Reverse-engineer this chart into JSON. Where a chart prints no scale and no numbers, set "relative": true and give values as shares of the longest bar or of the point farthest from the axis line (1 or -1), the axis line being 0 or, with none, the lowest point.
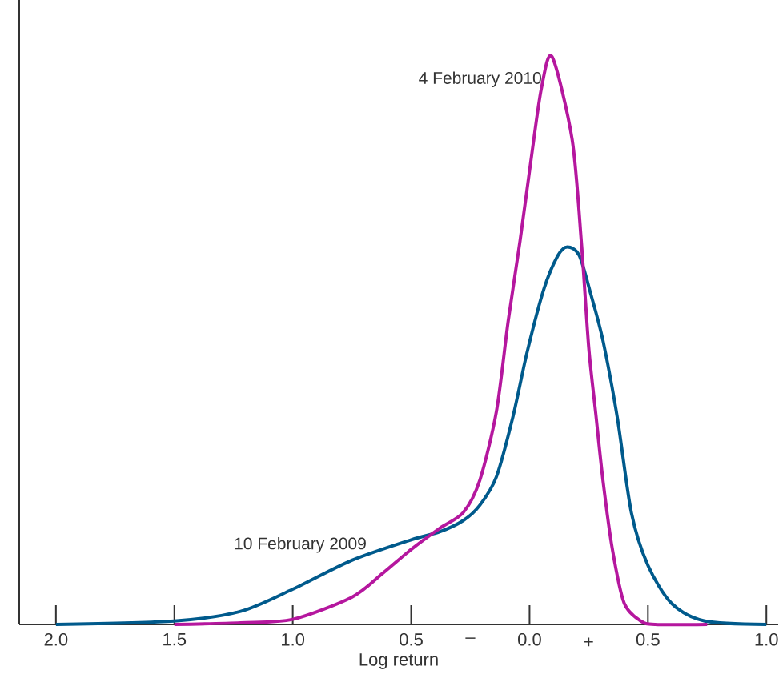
{
  "chart_data": {
    "type": "line",
    "relative": true,
    "xlabel": "Log return",
    "xlim": [
      -2.155,
      1.05
    ],
    "xticks": [
      {
        "value": -2,
        "label": "2.0"
      },
      {
        "value": -1.5,
        "label": "1.5"
      },
      {
        "value": -1,
        "label": "1.0"
      },
      {
        "value": -0.5,
        "label": "0.5"
      },
      {
        "value": 0,
        "label": "0.0"
      },
      0.5,
      {
        "value": 1,
        "label": "1.0"
      }
    ],
    "series": [
      {
        "color": "#005a8c",
        "x": [
          -2.0,
          -1.5,
          -1.22,
          -1.0,
          -0.75,
          -0.5,
          -0.38,
          -0.28,
          -0.21,
          -0.14,
          -0.07,
          -0.01,
          0.06,
          0.12,
          0.16,
          0.21,
          0.26,
          0.31,
          0.37,
          0.43,
          0.5,
          0.6,
          0.74,
          1.0
        ],
        "values": [
          0,
          0.006,
          0.023,
          0.062,
          0.113,
          0.149,
          0.163,
          0.183,
          0.21,
          0.26,
          0.366,
          0.48,
          0.59,
          0.65,
          0.665,
          0.65,
          0.58,
          0.5,
          0.366,
          0.197,
          0.104,
          0.037,
          0.006,
          0
        ]
      },
      {
        "color": "#b5179e",
        "x": [
          -1.5,
          -1.22,
          -1.0,
          -0.75,
          -0.62,
          -0.5,
          -0.38,
          -0.28,
          -0.21,
          -0.14,
          -0.09,
          -0.04,
          0.01,
          0.05,
          0.095,
          0.18,
          0.22,
          0.25,
          0.28,
          0.31,
          0.35,
          0.4,
          0.47,
          0.53,
          0.75
        ],
        "values": [
          0,
          0.003,
          0.009,
          0.048,
          0.09,
          0.132,
          0.169,
          0.197,
          0.254,
          0.375,
          0.535,
          0.676,
          0.83,
          0.944,
          1.0,
          0.854,
          0.667,
          0.488,
          0.37,
          0.254,
          0.132,
          0.037,
          0.006,
          0,
          0
        ]
      }
    ],
    "annotations": [
      {
        "text": "4 February 2010",
        "x": 0.06,
        "y": 0.96
      },
      {
        "text": "10 February 2009",
        "x": -0.68,
        "y": 0.14
      },
      "–",
      "+"
    ]
  }
}
